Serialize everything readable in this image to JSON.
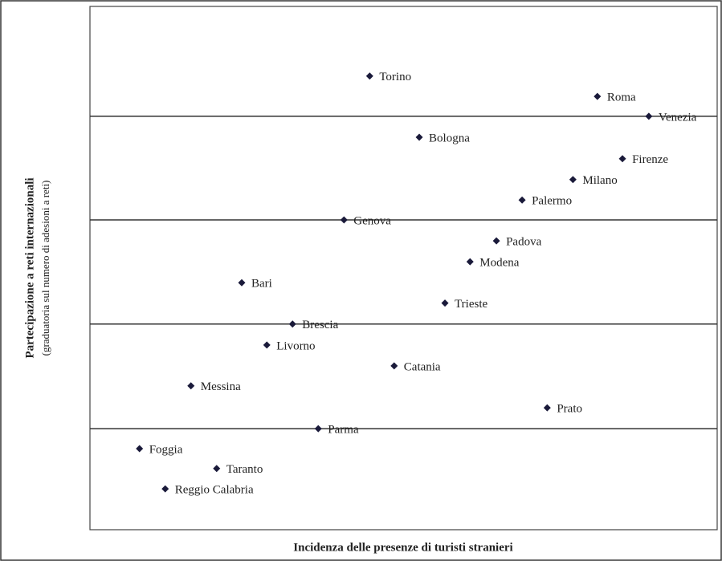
{
  "chart_data": {
    "type": "scatter",
    "xlabel": "Incidenza delle presenze di turisti stranieri",
    "ylabel": [
      "Partecipazione a reti internazionali",
      "(graduatoria sul numero di adesioni a reti)"
    ],
    "labels": [
      "Torino",
      "Roma",
      "Venezia",
      "Bologna",
      "Firenze",
      "Milano",
      "Palermo",
      "Genova",
      "Padova",
      "Modena",
      "Bari",
      "Trieste",
      "Brescia",
      "Livorno",
      "Catania",
      "Messina",
      "Prato",
      "Parma",
      "Foggia",
      "Taranto",
      "Reggio Calabria"
    ],
    "x": [
      44.6,
      80.9,
      89.1,
      52.5,
      84.9,
      77.0,
      68.9,
      40.5,
      64.8,
      60.6,
      24.2,
      56.6,
      32.3,
      28.2,
      48.5,
      16.1,
      72.9,
      36.4,
      7.9,
      20.2,
      12.0
    ],
    "values": [
      86.7,
      82.8,
      79.0,
      75.0,
      70.9,
      66.9,
      63.0,
      59.2,
      55.2,
      51.2,
      47.2,
      43.3,
      39.3,
      35.3,
      31.3,
      27.5,
      23.3,
      19.3,
      15.5,
      11.7,
      7.8
    ],
    "color": "#1a1a3a",
    "xlim": [
      0,
      100
    ],
    "ylim": [
      0,
      100
    ],
    "yticks": [
      19.3,
      39.3,
      59.2,
      79.0
    ],
    "grid": true
  }
}
